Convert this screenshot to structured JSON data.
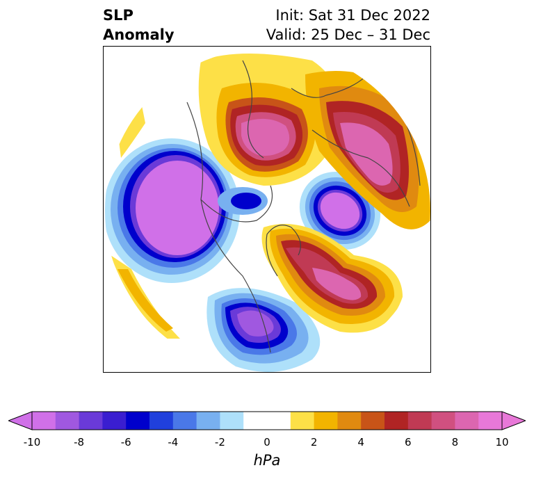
{
  "title": {
    "left_line1": "SLP",
    "left_line2": "Anomaly",
    "right_line1": "Init: Sat 31 Dec 2022",
    "right_line2": "Valid: 25 Dec – 31 Dec"
  },
  "colorbar": {
    "label": "hPa",
    "ticks": [
      "-10",
      "-8",
      "-6",
      "-4",
      "-2",
      "0",
      "2",
      "4",
      "6",
      "8",
      "10"
    ],
    "tick_values": [
      -10,
      -8,
      -6,
      -4,
      -2,
      0,
      2,
      4,
      6,
      8,
      10
    ],
    "colors": [
      "#d070e8",
      "#a058e0",
      "#6a3ad8",
      "#3a1ed0",
      "#0000cc",
      "#2040dc",
      "#4a78e8",
      "#78b0f0",
      "#aee0fa",
      "#ffffff",
      "#ffffff",
      "#fde047",
      "#f2b400",
      "#e08a10",
      "#c85418",
      "#b02424",
      "#c03a54",
      "#d05080",
      "#dc66b0",
      "#e878d8"
    ],
    "extend_min_color": "#d070e8",
    "extend_max_color": "#e878d8"
  },
  "map": {
    "projection": "north-polar-stereographic",
    "field": "sea level pressure anomaly",
    "features": [
      {
        "name": "north-pacific-low",
        "sign": "negative",
        "anomaly": -10
      },
      {
        "name": "eastern-north-america-low",
        "sign": "negative",
        "anomaly": -9
      },
      {
        "name": "polar-low",
        "sign": "negative",
        "anomaly": -10
      },
      {
        "name": "siberia-high",
        "sign": "positive",
        "anomaly": 10
      },
      {
        "name": "northern-europe-high",
        "sign": "positive",
        "anomaly": 10
      },
      {
        "name": "north-atlantic-high",
        "sign": "positive",
        "anomaly": 9
      }
    ]
  }
}
